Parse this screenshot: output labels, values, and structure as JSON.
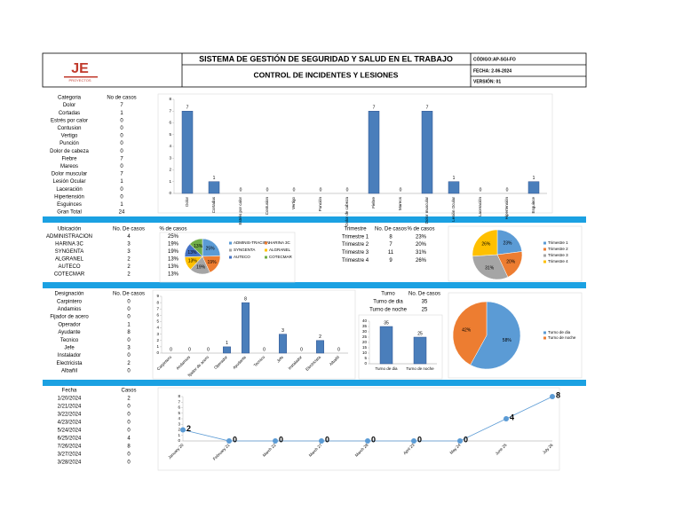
{
  "header": {
    "logo": "JE",
    "logo_sub": "PROYECTOS",
    "title": "SISTEMA DE GESTIÓN DE SEGURIDAD Y SALUD EN EL TRABAJO",
    "subtitle": "CONTROL DE INCIDENTES Y LESIONES",
    "code": "CÓDIGO:AP-SGI-FO",
    "date": "FECHA: 2-06-2024",
    "version": "VERSIÓN: 01"
  },
  "tables": [
    {
      "columns": [
        "Categoria",
        "No de casos"
      ],
      "rows": [
        [
          "Dolor",
          7
        ],
        [
          "Cortadas",
          1
        ],
        [
          "Estrés por calor",
          0
        ],
        [
          "Contusion",
          0
        ],
        [
          "Vertigo",
          0
        ],
        [
          "Punción",
          0
        ],
        [
          "Dolor de cabeza",
          0
        ],
        [
          "Fiebre",
          7
        ],
        [
          "Mareos",
          0
        ],
        [
          "Dolor muscular",
          7
        ],
        [
          "Lesión Ocular",
          1
        ],
        [
          "Laceración",
          0
        ],
        [
          "Hipertensión",
          0
        ],
        [
          "Esguinces",
          1
        ],
        [
          "Gran Total",
          24
        ]
      ]
    },
    {
      "columns": [
        "Ubicación",
        "No. De casos",
        "% de casos"
      ],
      "rows": [
        [
          "ADMINISTRACION",
          4,
          "25%"
        ],
        [
          "HARINA 3C",
          3,
          "19%"
        ],
        [
          "SYNGENTA",
          3,
          "19%"
        ],
        [
          "ALGRANEL",
          2,
          "13%"
        ],
        [
          "AUTECO",
          2,
          "13%"
        ],
        [
          "COTECMAR",
          2,
          "13%"
        ]
      ]
    },
    {
      "columns": [
        "Trimestre",
        "No. De casos",
        "% de casos"
      ],
      "rows": [
        [
          "Trimestre 1",
          8,
          "23%"
        ],
        [
          "Trimestre 2",
          7,
          "20%"
        ],
        [
          "Trimestre 3",
          11,
          "31%"
        ],
        [
          "Trimestre 4",
          9,
          "26%"
        ]
      ]
    },
    {
      "columns": [
        "Designación",
        "No. De casos"
      ],
      "rows": [
        [
          "Carpintero",
          0
        ],
        [
          "Andamios",
          0
        ],
        [
          "Fijador de acero",
          0
        ],
        [
          "Operador",
          1
        ],
        [
          "Ayudante",
          8
        ],
        [
          "Tecnico",
          0
        ],
        [
          "Jefe",
          3
        ],
        [
          "Instalador",
          0
        ],
        [
          "Electricista",
          2
        ],
        [
          "Albañil",
          0
        ]
      ]
    },
    {
      "columns": [
        "Turno",
        "No. De casos"
      ],
      "rows": [
        [
          "Turno de dia",
          35
        ],
        [
          "Turno de noche",
          25
        ]
      ]
    },
    {
      "columns": [
        "Fecha",
        "Casos"
      ],
      "rows": [
        [
          "1/20/2024",
          2
        ],
        [
          "2/21/2024",
          0
        ],
        [
          "3/22/2024",
          0
        ],
        [
          "4/23/2024",
          0
        ],
        [
          "5/24/2024",
          0
        ],
        [
          "6/25/2024",
          4
        ],
        [
          "7/26/2024",
          8
        ],
        [
          "3/27/2024",
          0
        ],
        [
          "3/28/2024",
          0
        ]
      ]
    }
  ],
  "chart_data": [
    {
      "type": "bar",
      "categories": [
        "Dolor",
        "Cortadas",
        "Estrés por calor",
        "Contusion",
        "Vertigo",
        "Punción",
        "Dolor de cabeza",
        "Fiebre",
        "Mareos",
        "Dolor muscular",
        "Lesión Ocular",
        "Laceración",
        "Hipertensión",
        "Esguince"
      ],
      "values": [
        7,
        1,
        0,
        0,
        0,
        0,
        0,
        7,
        0,
        7,
        1,
        0,
        0,
        1
      ],
      "color": "#4a7ebb",
      "ylim": [
        0,
        8
      ],
      "yticks": [
        0,
        1,
        2,
        3,
        4,
        5,
        6,
        7,
        8
      ]
    },
    {
      "type": "pie",
      "categories": [
        "ADMINIS-TRACION",
        "HARINA 3C",
        "SYNGENTA",
        "ALGRANEL",
        "AUTECO",
        "COTECMAR"
      ],
      "values": [
        25,
        19,
        19,
        13,
        13,
        13
      ],
      "value_labels": [
        "25%",
        "19%",
        "19%",
        "13%",
        "13%",
        "13%"
      ],
      "colors": [
        "#5b9bd5",
        "#ed7d31",
        "#a5a5a5",
        "#ffc000",
        "#4472c4",
        "#70ad47"
      ],
      "legend": "right"
    },
    {
      "type": "pie",
      "categories": [
        "Trimestre 1",
        "Trimestre 2",
        "Trimestre 3",
        "Trimestre 4"
      ],
      "values": [
        23,
        20,
        31,
        26
      ],
      "value_labels": [
        "23%",
        "20%",
        "31%",
        "26%"
      ],
      "colors": [
        "#5b9bd5",
        "#ed7d31",
        "#a5a5a5",
        "#ffc000"
      ],
      "legend": "right"
    },
    {
      "type": "bar",
      "categories": [
        "Carpintero",
        "Andamios",
        "fijador de acero",
        "Operador",
        "Ayudante",
        "Tecnico",
        "Jefe",
        "Instalador",
        "Electricista",
        "Albañil"
      ],
      "values": [
        0,
        0,
        0,
        1,
        8,
        0,
        3,
        0,
        2,
        0
      ],
      "color": "#4a7ebb",
      "ylim": [
        0,
        9
      ],
      "yticks": [
        0,
        1,
        2,
        3,
        4,
        5,
        6,
        7,
        8,
        9
      ]
    },
    {
      "type": "bar",
      "categories": [
        "Turno de dia",
        "Turno de noche"
      ],
      "values": [
        35,
        25
      ],
      "color": "#4a7ebb",
      "ylim": [
        0,
        40
      ],
      "yticks": [
        0,
        5,
        10,
        15,
        20,
        25,
        30,
        35,
        40
      ]
    },
    {
      "type": "pie",
      "categories": [
        "Turno de dia",
        "Turno de noche"
      ],
      "values": [
        58,
        42
      ],
      "value_labels": [
        "58%",
        "42%"
      ],
      "colors": [
        "#5b9bd5",
        "#ed7d31"
      ],
      "legend": "right"
    },
    {
      "type": "line",
      "categories": [
        "January 20",
        "February 21",
        "March 22",
        "March 27",
        "March 28",
        "April 23",
        "May 24",
        "June 25",
        "July 26"
      ],
      "values": [
        2,
        0,
        0,
        0,
        0,
        0,
        0,
        4,
        8
      ],
      "color": "#5b9bd5",
      "ylim": [
        0,
        8
      ],
      "yticks": [
        0,
        1,
        2,
        3,
        4,
        5,
        6,
        7,
        8
      ]
    }
  ]
}
